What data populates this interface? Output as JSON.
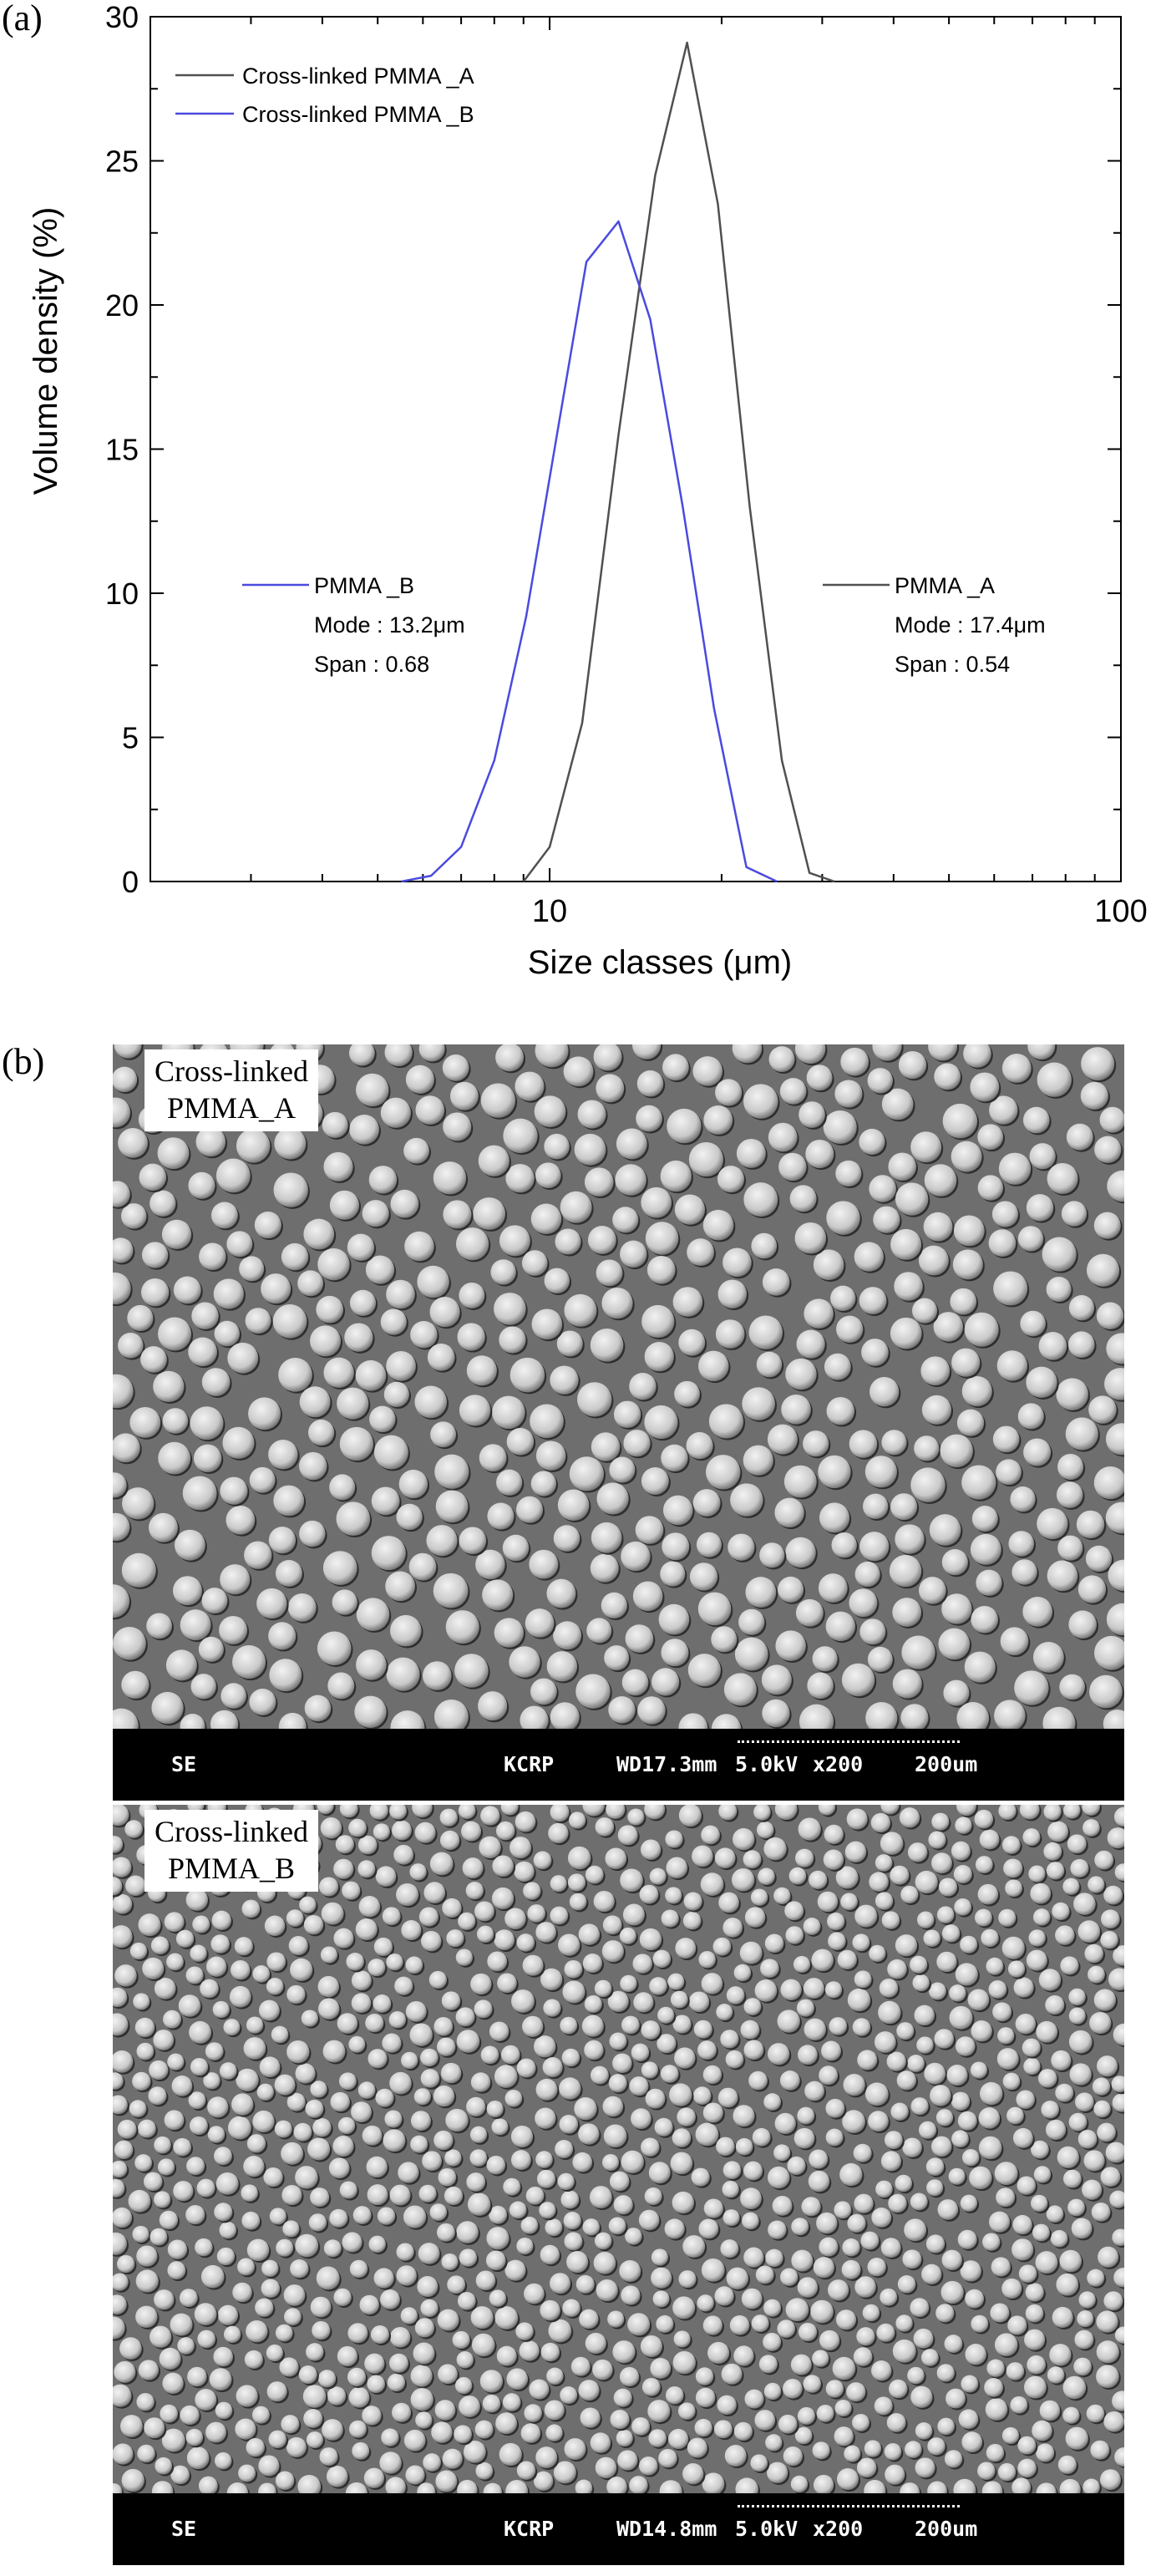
{
  "panels": {
    "a_label": "(a)",
    "b_label": "(b)"
  },
  "chart_data": {
    "type": "line",
    "title": "",
    "xlabel": "Size classes (μm)",
    "ylabel": "Volume density (%)",
    "xscale": "log",
    "xlim": [
      2,
      100
    ],
    "ylim": [
      0,
      30
    ],
    "xticks": [
      10,
      100
    ],
    "yticks": [
      0,
      5,
      10,
      15,
      20,
      25,
      30
    ],
    "grid": false,
    "legend_position": "top-left",
    "series": [
      {
        "name": "Cross-linked PMMA _A",
        "color": "#505050",
        "x": [
          9.0,
          10.0,
          11.4,
          13.2,
          15.3,
          17.4,
          19.7,
          22.4,
          25.5,
          28.5,
          31.5
        ],
        "y": [
          0.0,
          1.2,
          5.5,
          15.5,
          24.5,
          29.1,
          23.5,
          13.0,
          4.2,
          0.3,
          0.0
        ]
      },
      {
        "name": "Cross-linked PMMA _B",
        "color": "#4a4adf",
        "x": [
          5.5,
          6.2,
          7.0,
          8.0,
          9.1,
          10.3,
          11.6,
          13.2,
          15.0,
          17.1,
          19.4,
          22.1,
          25.0
        ],
        "y": [
          0.0,
          0.2,
          1.2,
          4.2,
          9.2,
          15.5,
          21.5,
          22.9,
          19.5,
          13.0,
          6.0,
          0.5,
          0.0
        ]
      }
    ],
    "annotations": [
      {
        "lines": [
          "PMMA _B",
          "Mode : 13.2μm",
          "Span : 0.68"
        ],
        "color": "#4a4adf"
      },
      {
        "lines": [
          "PMMA _A",
          "Mode : 17.4μm",
          "Span : 0.54"
        ],
        "color": "#505050"
      }
    ]
  },
  "sem_a": {
    "label_line1": "Cross-linked",
    "label_line2": "PMMA_A",
    "bar_se": "SE",
    "bar_lab": "KCRP",
    "bar_wd": "WD17.3mm",
    "bar_kv": "5.0kV",
    "bar_mag": "x200",
    "bar_scale": "200um"
  },
  "sem_b": {
    "label_line1": "Cross-linked",
    "label_line2": "PMMA_B",
    "bar_se": "SE",
    "bar_lab": "KCRP",
    "bar_wd": "WD14.8mm",
    "bar_kv": "5.0kV",
    "bar_mag": "x200",
    "bar_scale": "200um"
  }
}
